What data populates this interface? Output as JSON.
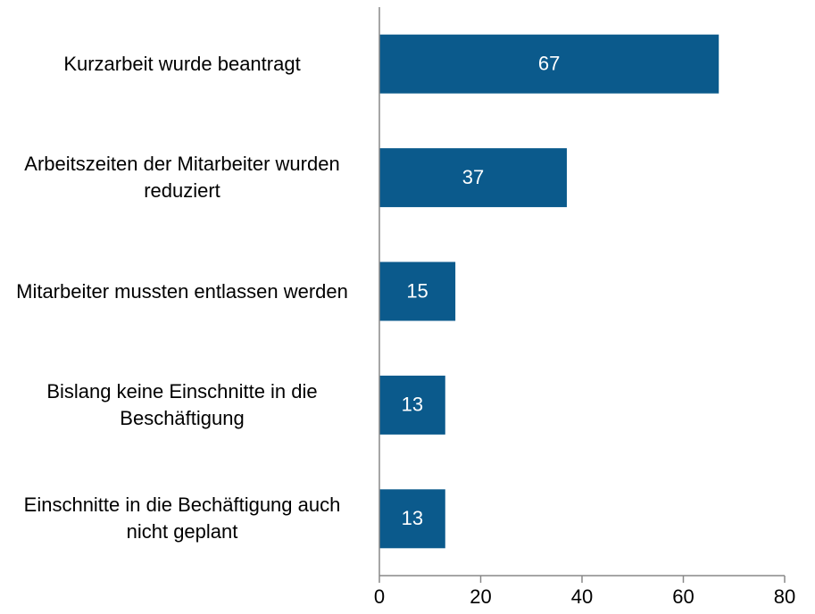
{
  "chart_data": {
    "type": "barh",
    "categories": [
      "Kurzarbeit wurde beantragt",
      "Arbeitszeiten der Mitarbeiter wurden reduziert",
      "Mitarbeiter mussten entlassen werden",
      "Bislang keine Einschnitte in die Beschäftigung",
      "Einschnitte in die Bechäftigung auch nicht geplant"
    ],
    "values": [
      67,
      37,
      15,
      13,
      13
    ],
    "color": "#0b5a8c",
    "xlim": [
      0,
      80
    ],
    "xticks": [
      0,
      20,
      40,
      60,
      80
    ]
  }
}
